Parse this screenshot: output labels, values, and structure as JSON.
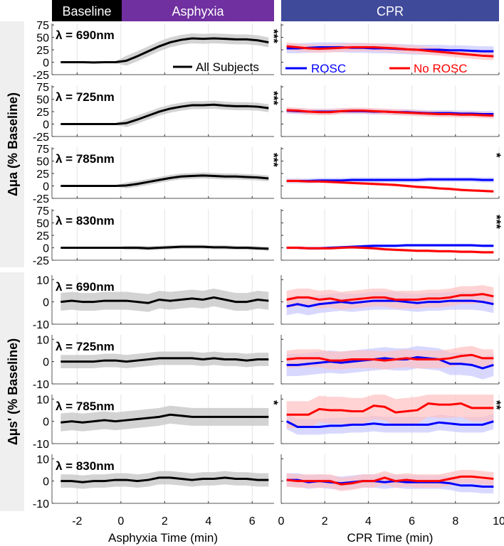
{
  "header": {
    "baseline": "Baseline",
    "asphyxia": "Asphyxia",
    "cpr": "CPR",
    "colors": {
      "baseline": "#000000",
      "asphyxia": "#7030a0",
      "cpr": "#3f4a9a"
    }
  },
  "chart_data": {
    "type": "line",
    "ylabel_mua": "Δμa (% Baseline)",
    "ylabel_mus": "Δμs' (% Baseline)",
    "left": {
      "xlabel": "Asphyxia Time (min)",
      "xlim": [
        -3.15,
        7
      ],
      "xticks": [
        -2,
        0,
        2,
        4,
        6
      ],
      "x": [
        -2.75,
        -2.25,
        -1.75,
        -1.25,
        -0.75,
        -0.25,
        0.25,
        0.75,
        1.25,
        1.75,
        2.25,
        2.75,
        3.25,
        3.75,
        4.25,
        4.75,
        5.25,
        5.75,
        6.25,
        6.75
      ],
      "legend": "All Subjects",
      "color": "#000000",
      "band_color": "#c8c8c8"
    },
    "right": {
      "xlabel": "CPR Time (min)",
      "xlim": [
        0,
        10
      ],
      "xticks": [
        0,
        2,
        4,
        6,
        8,
        10
      ],
      "x": [
        0.25,
        0.75,
        1.25,
        1.75,
        2.25,
        2.75,
        3.25,
        3.75,
        4.25,
        4.75,
        5.25,
        5.75,
        6.25,
        6.75,
        7.25,
        7.75,
        8.25,
        8.75,
        9.25,
        9.75
      ],
      "legend": [
        {
          "name": "ROSC",
          "color": "#0000ff"
        },
        {
          "name": "No ROSC",
          "color": "#ff0000"
        }
      ]
    },
    "mua": {
      "ylim": [
        -25,
        78
      ],
      "yticks": [
        -25,
        0,
        25,
        50,
        75
      ],
      "panels": [
        {
          "label": "λ = 690nm",
          "left_sig": "***",
          "right_sig": "",
          "all": [
            0,
            0,
            0,
            -0.5,
            0,
            0,
            3,
            12,
            22,
            32,
            40,
            45,
            48,
            47,
            48,
            47,
            46,
            46,
            44,
            40
          ],
          "all_band": 10,
          "rosc": [
            28,
            28,
            29,
            30,
            30,
            30,
            29,
            29,
            28,
            28,
            27,
            26,
            25,
            25,
            25,
            24,
            24,
            23,
            22,
            22
          ],
          "rosc_band": 10,
          "norosc": [
            32,
            30,
            28,
            27,
            28,
            29,
            30,
            30,
            30,
            29,
            28,
            26,
            25,
            23,
            21,
            19,
            17,
            15,
            13,
            12
          ],
          "norosc_band": 8
        },
        {
          "label": "λ = 725nm",
          "left_sig": "***",
          "right_sig": "",
          "all": [
            0,
            0,
            0,
            0,
            0,
            0,
            2,
            9,
            17,
            25,
            31,
            35,
            38,
            38,
            39,
            37,
            36,
            36,
            35,
            32
          ],
          "all_band": 8,
          "rosc": [
            27,
            26,
            25,
            25,
            25,
            26,
            26,
            26,
            25,
            25,
            24,
            24,
            23,
            22,
            22,
            22,
            21,
            21,
            20,
            20
          ],
          "rosc_band": 6,
          "norosc": [
            28,
            27,
            25,
            24,
            24,
            26,
            27,
            27,
            26,
            25,
            24,
            23,
            22,
            21,
            20,
            20,
            19,
            19,
            18,
            17
          ],
          "norosc_band": 6
        },
        {
          "label": "λ = 785nm",
          "left_sig": "***",
          "right_sig": "*",
          "all": [
            0,
            0,
            0,
            0,
            0,
            0,
            1,
            4,
            8,
            12,
            16,
            19,
            20,
            21,
            20,
            19,
            19,
            18,
            17,
            15
          ],
          "all_band": 6,
          "rosc": [
            10,
            10,
            10,
            11,
            11,
            11,
            12,
            12,
            12,
            12,
            12,
            12,
            12,
            13,
            13,
            13,
            13,
            13,
            12,
            12
          ],
          "rosc_band": 5,
          "norosc": [
            10,
            10,
            9,
            9,
            8,
            7,
            6,
            5,
            4,
            3,
            2,
            0,
            -2,
            -3,
            -5,
            -6,
            -8,
            -9,
            -10,
            -11
          ],
          "norosc_band": 3
        },
        {
          "label": "λ = 830nm",
          "left_sig": "",
          "right_sig": "***",
          "all": [
            0,
            0,
            0,
            0,
            0,
            0,
            0,
            0,
            -1,
            0,
            1,
            2,
            2,
            2,
            1,
            1,
            0,
            0,
            -1,
            -2
          ],
          "all_band": 4,
          "rosc": [
            0,
            0,
            -1,
            -1,
            0,
            1,
            2,
            3,
            4,
            4,
            4,
            5,
            5,
            5,
            5,
            5,
            5,
            5,
            4,
            4
          ],
          "rosc_band": 3,
          "norosc": [
            0,
            0,
            -1,
            -1,
            -1,
            0,
            1,
            0,
            -1,
            -3,
            -4,
            -5,
            -6,
            -6,
            -7,
            -7,
            -8,
            -8,
            -9,
            -9
          ],
          "norosc_band": 3
        }
      ]
    },
    "mus": {
      "ylim": [
        -10,
        12
      ],
      "yticks": [
        -10,
        0,
        10
      ],
      "panels": [
        {
          "label": "λ = 690nm",
          "left_sig": "",
          "right_sig": "",
          "all": [
            0,
            0.5,
            0,
            0,
            0.5,
            0.5,
            0.5,
            0,
            -0.5,
            1,
            0.5,
            1,
            1.5,
            1,
            2,
            1,
            0,
            0,
            1,
            0.5
          ],
          "all_band": 4,
          "rosc": [
            -2,
            -1,
            -2,
            -1,
            -0.5,
            0,
            -0.5,
            0,
            0.5,
            0.5,
            0.5,
            0,
            -0.5,
            0,
            0,
            0.5,
            0.5,
            0.5,
            0,
            -1
          ],
          "rosc_band": 4,
          "norosc": [
            1,
            2,
            2,
            1,
            1.5,
            0.5,
            1,
            1.5,
            2,
            2,
            1,
            1,
            1,
            1.5,
            1.5,
            2,
            3,
            3,
            3.5,
            2.5
          ],
          "norosc_band": 4
        },
        {
          "label": "λ = 725nm",
          "left_sig": "",
          "right_sig": "",
          "all": [
            0,
            0,
            0,
            0,
            0.5,
            0.5,
            0,
            0.5,
            1,
            1.5,
            1.5,
            1.5,
            1.5,
            1,
            1.5,
            1,
            1,
            0.5,
            1,
            1
          ],
          "all_band": 3,
          "rosc": [
            -1.5,
            -1.5,
            -1,
            -0.5,
            0,
            -0.5,
            0,
            0.5,
            1,
            1.5,
            1,
            1,
            2,
            1.5,
            1,
            -1,
            -1,
            -1.5,
            -3,
            -1.5
          ],
          "rosc_band": 5,
          "norosc": [
            1,
            1.5,
            1.5,
            1.5,
            0.5,
            0.5,
            1,
            1,
            1,
            0.5,
            1,
            1.5,
            1,
            1,
            1,
            1.5,
            2.5,
            3,
            1.5,
            1.5
          ],
          "norosc_band": 4
        },
        {
          "label": "λ = 785nm",
          "left_sig": "*",
          "right_sig": "**",
          "all": [
            -0.5,
            0,
            -0.5,
            0,
            0.5,
            0,
            0.5,
            1,
            1.5,
            2,
            3,
            2.5,
            2,
            2,
            2,
            2,
            2,
            2,
            2,
            2
          ],
          "all_band": 4,
          "rosc": [
            0,
            -2.5,
            -2.5,
            -2.5,
            -2,
            -2,
            -1.5,
            -1.5,
            -1,
            -1.5,
            -1.5,
            -1.5,
            -1.5,
            -1.5,
            -0.5,
            -1,
            -1.5,
            -1.5,
            -1.5,
            0
          ],
          "rosc_band": 3.5,
          "norosc": [
            3,
            3,
            3,
            5.5,
            5,
            5,
            4.5,
            4.5,
            7,
            6.5,
            4,
            4.5,
            5,
            8,
            7.5,
            7.5,
            8,
            6,
            6,
            6
          ],
          "norosc_band": 6
        },
        {
          "label": "λ = 830nm",
          "left_sig": "",
          "right_sig": "",
          "all": [
            0,
            0,
            -0.5,
            0,
            0,
            0.5,
            0.5,
            0,
            0.5,
            1.5,
            1.5,
            1,
            0.5,
            1,
            1,
            1.5,
            1,
            1,
            0.5,
            0.5
          ],
          "all_band": 3,
          "rosc": [
            0.5,
            0.5,
            -0.5,
            0,
            -0.5,
            -1,
            -0.5,
            0,
            0,
            -0.5,
            0,
            -0.5,
            -0.5,
            -0.5,
            -0.5,
            -1,
            -2,
            -2,
            -2.5,
            -2.5
          ],
          "rosc_band": 3,
          "norosc": [
            0.5,
            0,
            0,
            0,
            0,
            -1.5,
            -1,
            0,
            0,
            1.5,
            0,
            0.5,
            0,
            0,
            0,
            1,
            2,
            2,
            1.5,
            1
          ],
          "norosc_band": 3
        }
      ]
    }
  }
}
